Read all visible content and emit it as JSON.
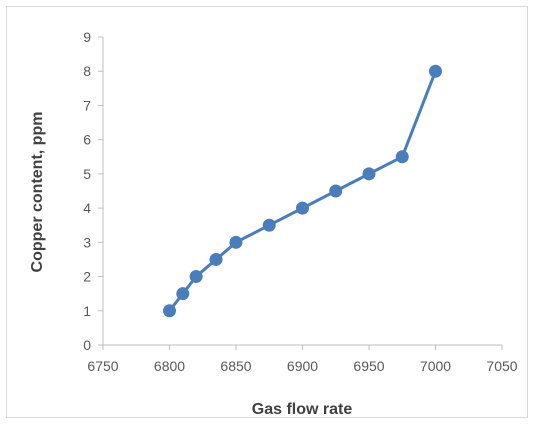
{
  "chart_data": {
    "type": "line",
    "title": "",
    "xlabel": "Gas flow rate",
    "ylabel": "Copper content, ppm",
    "xlim": [
      6750,
      7050
    ],
    "ylim": [
      0,
      9
    ],
    "x_ticks": [
      6750,
      6800,
      6850,
      6900,
      6950,
      7000,
      7050
    ],
    "y_ticks": [
      0,
      1,
      2,
      3,
      4,
      5,
      6,
      7,
      8,
      9
    ],
    "grid": false,
    "legend": "none",
    "series": [
      {
        "color": "#4a7ebb",
        "marker": "circle",
        "x": [
          6800,
          6810,
          6820,
          6835,
          6850,
          6875,
          6900,
          6925,
          6950,
          6975,
          7000
        ],
        "y": [
          1,
          1.5,
          2,
          2.5,
          3,
          3.5,
          4,
          4.5,
          5,
          5.5,
          8
        ]
      }
    ]
  }
}
